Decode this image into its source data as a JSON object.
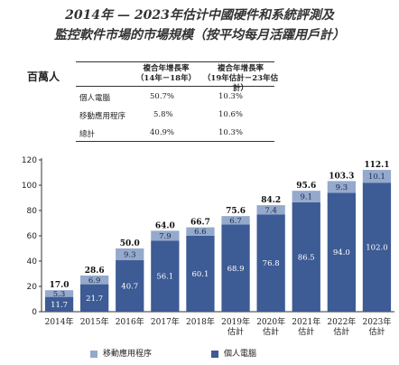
{
  "header": {
    "title_line1": "2014年 — 2023年估计中國硬件和系統評測及",
    "title_line2": "監控軟件市場的市場規模（按平均每月活躍用戶計）",
    "unit": "百萬人"
  },
  "cagr_table": {
    "col1_line1": "複合年增長率",
    "col1_line2": "（14年－18年）",
    "col2_line1": "複合年增長率",
    "col2_line2": "（19年估計－23年估計）",
    "rows": [
      {
        "label": "個人電腦",
        "v1": "50.7%",
        "v2": "10.3%"
      },
      {
        "label": "移動應用程序",
        "v1": "5.8%",
        "v2": "10.6%"
      },
      {
        "label": "總計",
        "v1": "40.9%",
        "v2": "10.3%"
      }
    ]
  },
  "chart_data": {
    "type": "bar",
    "stacked": true,
    "categories": [
      [
        "2014年"
      ],
      [
        "2015年"
      ],
      [
        "2016年"
      ],
      [
        "2017年"
      ],
      [
        "2018年"
      ],
      [
        "2019年",
        "估計"
      ],
      [
        "2020年",
        "估計"
      ],
      [
        "2021年",
        "估計"
      ],
      [
        "2022年",
        "估計"
      ],
      [
        "2023年",
        "估計"
      ]
    ],
    "series": [
      {
        "name": "個人電腦",
        "color": "#3d5b94",
        "values": [
          11.7,
          21.7,
          40.7,
          56.1,
          60.1,
          68.9,
          76.8,
          86.5,
          94.0,
          102.0
        ]
      },
      {
        "name": "移動應用程序",
        "color": "#94a9cc",
        "values": [
          5.3,
          6.9,
          9.3,
          7.9,
          6.6,
          6.7,
          7.4,
          9.1,
          9.3,
          10.1
        ]
      }
    ],
    "totals": [
      17.0,
      28.6,
      50.0,
      64.0,
      66.7,
      75.6,
      84.2,
      95.6,
      103.3,
      112.1
    ],
    "ylim": [
      0,
      120
    ],
    "yticks": [
      0,
      20,
      40,
      60,
      80,
      100,
      120
    ],
    "legend_position": "bottom",
    "grid": false
  },
  "legend": {
    "mobile_label": "移動應用程序",
    "pc_label": "個人電腦"
  }
}
